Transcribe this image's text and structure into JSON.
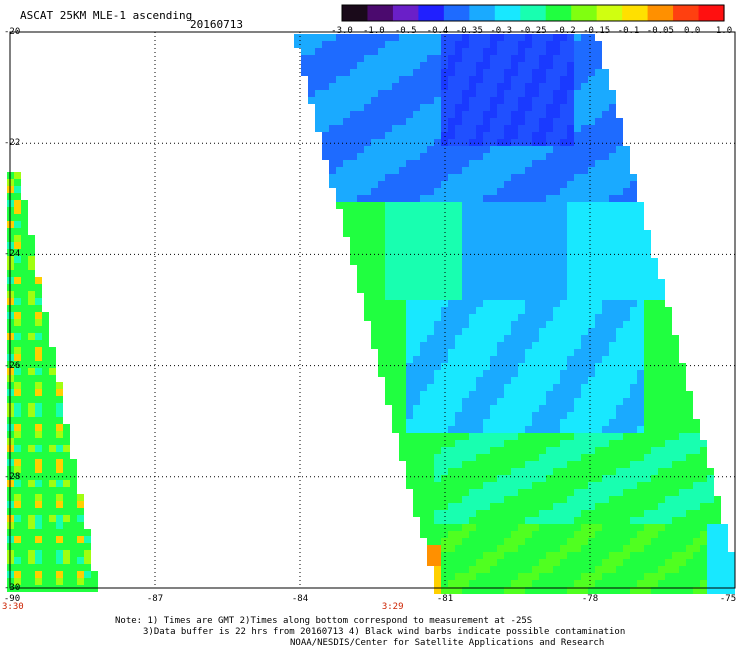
{
  "header": {
    "title": "ASCAT 25KM MLE-1 ascending",
    "date": "20160713"
  },
  "colorbar": {
    "labels": [
      "-3.0",
      "-1.0",
      "-0.5",
      "-0.4",
      "-0.35",
      "-0.3",
      "-0.25",
      "-0.2",
      "-0.15",
      "-0.1",
      "-0.05",
      "0.0",
      "1.0"
    ],
    "colors": [
      "#1a0a1a",
      "#4b0a6e",
      "#6a1fc8",
      "#2020ff",
      "#1e6bff",
      "#1aaaff",
      "#18e8ff",
      "#18ffb0",
      "#20ff40",
      "#80ff10",
      "#d0ff10",
      "#ffe000",
      "#ff9000",
      "#ff4010",
      "#ff1010"
    ]
  },
  "map": {
    "lon_range": [
      -90,
      -75
    ],
    "lat_range": [
      -30,
      -20
    ],
    "lon_ticks": [
      "-90",
      "-87",
      "-84",
      "-81",
      "-78",
      "-75"
    ],
    "lat_ticks": [
      "-20",
      "-22",
      "-24",
      "-26",
      "-28",
      "-30"
    ],
    "time_labels": [
      {
        "text": "3:30",
        "lon": -90
      },
      {
        "text": "3:29",
        "lon": -82.1
      }
    ]
  },
  "notes": [
    "Note: 1) Times are GMT 2)Times along bottom correspond to measurement at -25S",
    "3)Data buffer is 22 hrs from 20160713 4) Black wind barbs indicate possible contamination",
    "NOAA/NESDIS/Center for Satellite Applications and Research"
  ]
}
